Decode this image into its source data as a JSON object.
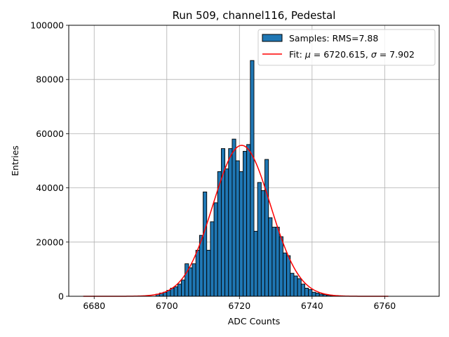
{
  "chart_data": {
    "type": "bar",
    "title": "Run 509, channel116, Pedestal",
    "xlabel": "ADC Counts",
    "ylabel": "Entries",
    "xlim": [
      6673,
      6775
    ],
    "ylim": [
      0,
      100000
    ],
    "xticks": [
      6680,
      6700,
      6720,
      6740,
      6760
    ],
    "yticks": [
      0,
      20000,
      40000,
      60000,
      80000,
      100000
    ],
    "grid": true,
    "legend_position": "top-right",
    "legend": [
      {
        "label": "Samples: RMS=7.88",
        "kind": "patch",
        "color": "#1f77b4"
      },
      {
        "label_parts": [
          "Fit: ",
          "μ",
          " = 6720.615, ",
          "σ",
          " = 7.902"
        ],
        "kind": "line",
        "color": "#ff0000"
      }
    ],
    "histogram": {
      "bin_width": 1,
      "bin_starts": [
        6697,
        6698,
        6699,
        6700,
        6701,
        6702,
        6703,
        6704,
        6705,
        6706,
        6707,
        6708,
        6709,
        6710,
        6711,
        6712,
        6713,
        6714,
        6715,
        6716,
        6717,
        6718,
        6719,
        6720,
        6721,
        6722,
        6723,
        6724,
        6725,
        6726,
        6727,
        6728,
        6729,
        6730,
        6731,
        6732,
        6733,
        6734,
        6735,
        6736,
        6737,
        6738,
        6739,
        6740,
        6741,
        6742,
        6743,
        6744,
        6745,
        6746
      ],
      "values": [
        800,
        1200,
        1500,
        2200,
        3000,
        3500,
        4500,
        6000,
        12000,
        10500,
        12000,
        17000,
        22500,
        38500,
        17000,
        27500,
        34500,
        46000,
        54500,
        47000,
        54500,
        58000,
        50000,
        46000,
        53500,
        56000,
        87000,
        24000,
        42000,
        39000,
        50500,
        29000,
        25500,
        25500,
        22000,
        16000,
        15000,
        8500,
        7500,
        6500,
        4500,
        3000,
        2500,
        1500,
        1200,
        800,
        600,
        400,
        250,
        150
      ],
      "color": "#1f77b4",
      "edgecolor": "#000000"
    },
    "fit": {
      "type": "gaussian",
      "mu": 6720.615,
      "sigma": 7.902,
      "amplitude": 55700,
      "x_range": [
        6677,
        6761
      ],
      "color": "#ff0000"
    }
  }
}
